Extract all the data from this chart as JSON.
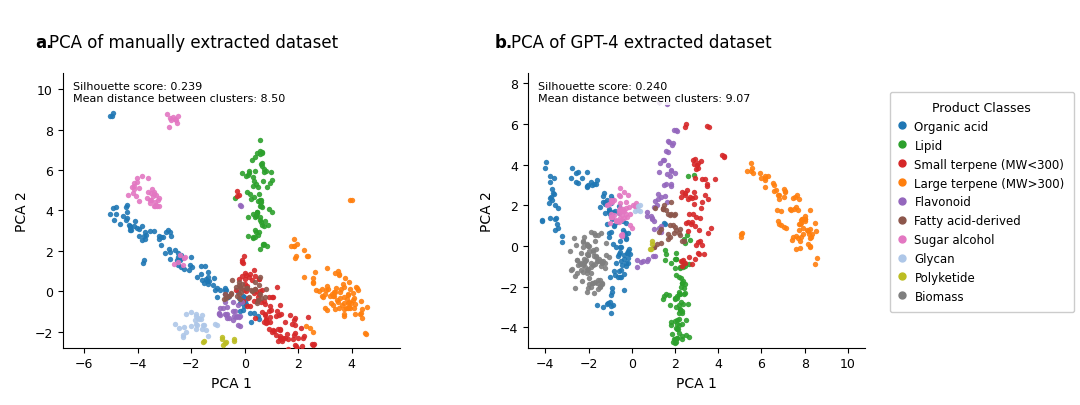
{
  "title_a": "PCA of manually extracted dataset",
  "title_b": "PCA of GPT-4 extracted dataset",
  "label_a": "a.",
  "label_b": "b.",
  "xlabel": "PCA 1",
  "ylabel": "PCA 2",
  "silhouette_a": "Silhouette score: 0.239\nMean distance between clusters: 8.50",
  "silhouette_b": "Silhouette score: 0.240\nMean distance between clusters: 9.07",
  "xlim_a": [
    -6.8,
    5.8
  ],
  "ylim_a": [
    -2.8,
    10.8
  ],
  "xlim_b": [
    -4.8,
    10.8
  ],
  "ylim_b": [
    -5.0,
    8.5
  ],
  "xticks_a": [
    -6,
    -4,
    -2,
    0,
    2,
    4
  ],
  "yticks_a": [
    -2,
    0,
    2,
    4,
    6,
    8,
    10
  ],
  "xticks_b": [
    -4,
    -2,
    0,
    2,
    4,
    6,
    8,
    10
  ],
  "yticks_b": [
    -4,
    -2,
    0,
    2,
    4,
    6,
    8
  ],
  "legend_title": "Product Classes",
  "classes": [
    "Organic acid",
    "Lipid",
    "Small terpene (MW<300)",
    "Large terpene (MW>300)",
    "Flavonoid",
    "Fatty acid-derived",
    "Sugar alcohol",
    "Glycan",
    "Polyketide",
    "Biomass"
  ],
  "colors": {
    "Organic acid": "#1f77b4",
    "Lipid": "#2ca02c",
    "Small terpene (MW<300)": "#d62728",
    "Large terpene (MW>300)": "#ff7f0e",
    "Flavonoid": "#9467bd",
    "Fatty acid-derived": "#8c564b",
    "Sugar alcohol": "#e377c2",
    "Glycan": "#aec7e8",
    "Polyketide": "#bcbd22",
    "Biomass": "#7f7f7f"
  },
  "dot_size": 15,
  "contour_color": "#888888",
  "background_color": "#ffffff",
  "title_fontsize": 12,
  "label_fontsize": 10,
  "tick_fontsize": 9,
  "annot_fontsize": 8
}
